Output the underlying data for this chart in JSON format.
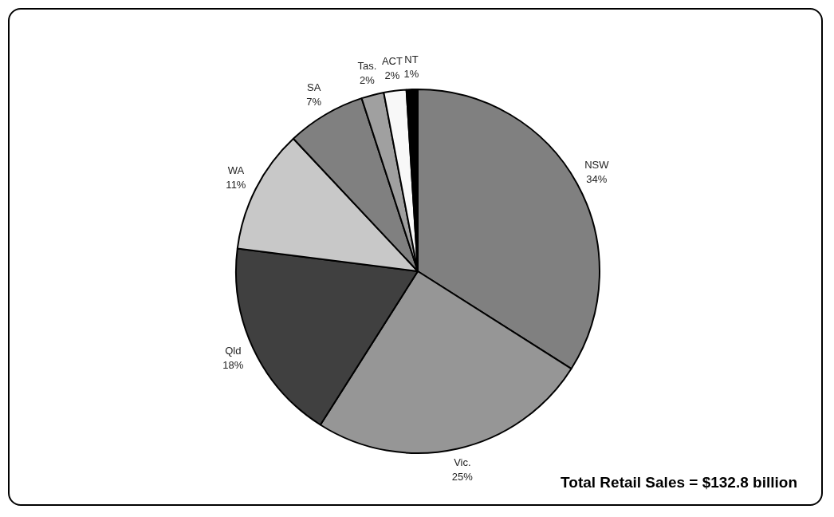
{
  "chart_data": {
    "type": "pie",
    "categories": [
      "NSW",
      "Vic.",
      "Qld",
      "WA",
      "SA",
      "Tas.",
      "ACT",
      "NT"
    ],
    "values": [
      34,
      25,
      18,
      11,
      7,
      2,
      2,
      1
    ],
    "colors": [
      "#808080",
      "#969696",
      "#404040",
      "#c8c8c8",
      "#808080",
      "#a0a0a0",
      "#f8f8f8",
      "#000000"
    ],
    "value_labels": [
      "34%",
      "25%",
      "18%",
      "11%",
      "7%",
      "2%",
      "2%",
      "1%"
    ],
    "legend": false,
    "annotations": [
      "Total Retail Sales = $132.8 billion"
    ]
  }
}
